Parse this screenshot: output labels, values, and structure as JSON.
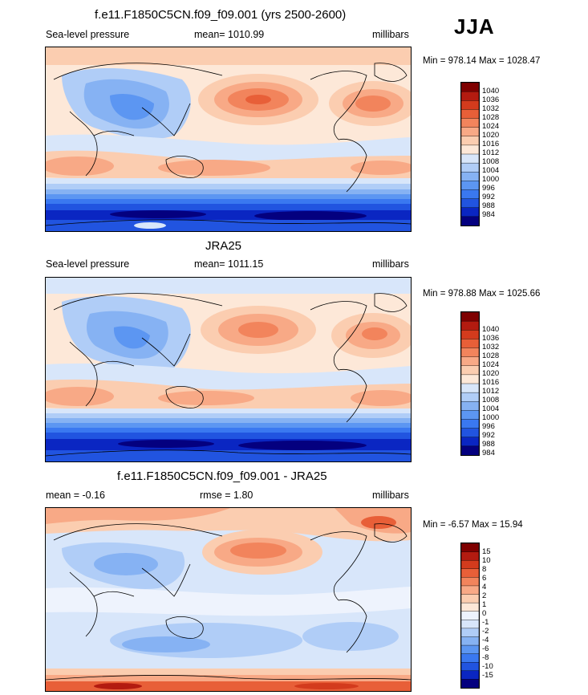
{
  "season": "JJA",
  "colors": {
    "abs_scale": [
      "#04007f",
      "#0a26c2",
      "#2154e0",
      "#3a78f0",
      "#5c96f2",
      "#86b2f3",
      "#b0cdf7",
      "#d8e6fa",
      "#fde8d8",
      "#fbcdb0",
      "#f8a986",
      "#f2845c",
      "#e85f38",
      "#d33b1d",
      "#b31b10",
      "#7f0000"
    ],
    "diff_scale": [
      "#04007f",
      "#0a26c2",
      "#2154e0",
      "#3a78f0",
      "#5c96f2",
      "#86b2f3",
      "#b0cdf7",
      "#d8e6fa",
      "#eef3fd",
      "#fde8d8",
      "#fbcdb0",
      "#f8a986",
      "#f2845c",
      "#e85f38",
      "#d33b1d",
      "#b31b10",
      "#7f0000"
    ]
  },
  "panels": [
    {
      "title": "f.e11.F1850C5CN.f09_f09.001 (yrs 2500-2600)",
      "left": "Sea-level pressure",
      "center": "mean= 1010.99",
      "right": "millibars",
      "minmax": "Min = 978.14 Max = 1028.47",
      "ticks": [
        "1040",
        "1036",
        "1032",
        "1028",
        "1024",
        "1020",
        "1016",
        "1012",
        "1008",
        "1004",
        "1000",
        "996",
        "992",
        "988",
        "984"
      ]
    },
    {
      "title": "JRA25",
      "left": "Sea-level pressure",
      "center": "mean= 1011.15",
      "right": "millibars",
      "minmax": "Min = 978.88 Max = 1025.66",
      "ticks": [
        "1040",
        "1036",
        "1032",
        "1028",
        "1024",
        "1020",
        "1016",
        "1012",
        "1008",
        "1004",
        "1000",
        "996",
        "992",
        "988",
        "984"
      ]
    },
    {
      "title": "f.e11.F1850C5CN.f09_f09.001 - JRA25",
      "left": "mean =  -0.16",
      "center": "rmse =   1.80",
      "right": "millibars",
      "minmax": "Min =  -6.57 Max =  15.94",
      "ticks": [
        "15",
        "10",
        "8",
        "6",
        "4",
        "2",
        "1",
        "0",
        "-1",
        "-2",
        "-4",
        "-6",
        "-8",
        "-10",
        "-15"
      ]
    }
  ]
}
